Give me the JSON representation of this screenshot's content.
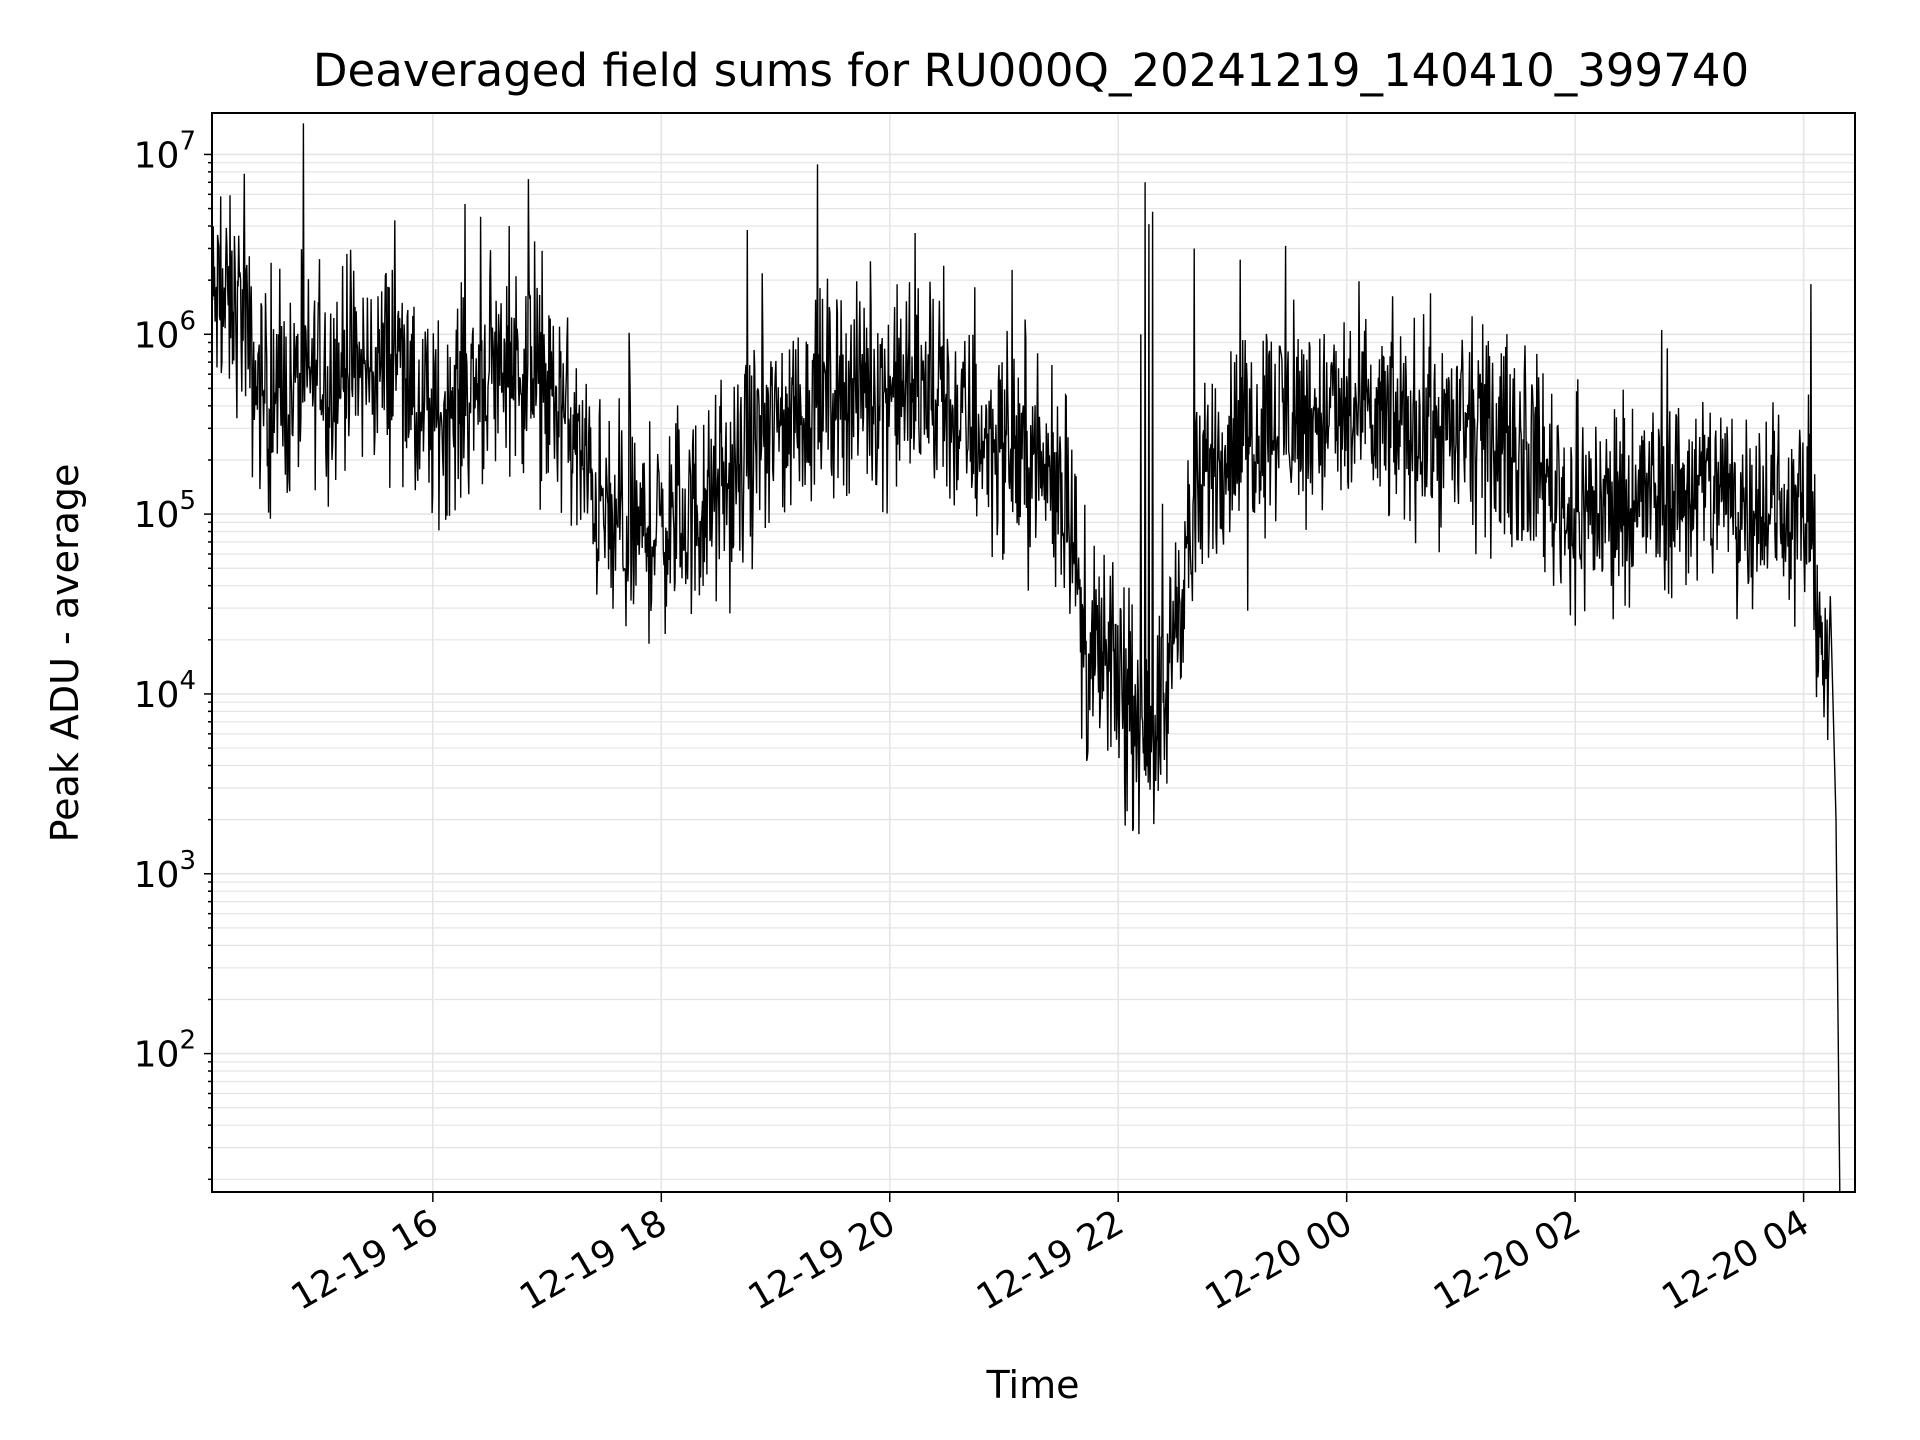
{
  "chart_data": {
    "type": "line",
    "title": "Deaveraged field sums for RU000Q_20241219_140410_399740",
    "xlabel": "Time",
    "ylabel": "Peak ADU - average",
    "yscale": "log",
    "ylim": [
      17,
      17000000
    ],
    "xlim": [
      "2024-12-19T14:04",
      "2024-12-20T04:27"
    ],
    "grid": true,
    "line_color": "#000000",
    "grid_color": "#e5e5e5",
    "x_ticks": [
      {
        "value": "2024-12-19T16:00",
        "label": "12-19 16"
      },
      {
        "value": "2024-12-19T18:00",
        "label": "12-19 18"
      },
      {
        "value": "2024-12-19T20:00",
        "label": "12-19 20"
      },
      {
        "value": "2024-12-19T22:00",
        "label": "12-19 22"
      },
      {
        "value": "2024-12-20T00:00",
        "label": "12-20 00"
      },
      {
        "value": "2024-12-20T02:00",
        "label": "12-20 02"
      },
      {
        "value": "2024-12-20T04:00",
        "label": "12-20 04"
      }
    ],
    "y_ticks": [
      {
        "value": 100,
        "base": "10",
        "exp": "2"
      },
      {
        "value": 1000,
        "base": "10",
        "exp": "3"
      },
      {
        "value": 10000,
        "base": "10",
        "exp": "4"
      },
      {
        "value": 100000,
        "base": "10",
        "exp": "5"
      },
      {
        "value": 1000000,
        "base": "10",
        "exp": "6"
      },
      {
        "value": 10000000,
        "base": "10",
        "exp": "7"
      }
    ],
    "series": [
      {
        "baseline": [
          [
            "2024-12-19T14:04",
            1500000
          ],
          [
            "2024-12-19T14:20",
            1400000
          ],
          [
            "2024-12-19T14:25",
            600000
          ],
          [
            "2024-12-19T14:35",
            400000
          ],
          [
            "2024-12-19T14:45",
            450000
          ],
          [
            "2024-12-19T15:00",
            650000
          ],
          [
            "2024-12-19T15:20",
            600000
          ],
          [
            "2024-12-19T15:35",
            700000
          ],
          [
            "2024-12-19T15:45",
            800000
          ],
          [
            "2024-12-19T15:50",
            320000
          ],
          [
            "2024-12-19T16:00",
            320000
          ],
          [
            "2024-12-19T16:20",
            500000
          ],
          [
            "2024-12-19T16:40",
            750000
          ],
          [
            "2024-12-19T17:00",
            450000
          ],
          [
            "2024-12-19T17:10",
            350000
          ],
          [
            "2024-12-19T17:20",
            170000
          ],
          [
            "2024-12-19T17:35",
            75000
          ],
          [
            "2024-12-19T17:55",
            80000
          ],
          [
            "2024-12-19T18:10",
            90000
          ],
          [
            "2024-12-19T18:20",
            100000
          ],
          [
            "2024-12-19T18:40",
            150000
          ],
          [
            "2024-12-19T18:50",
            250000
          ],
          [
            "2024-12-19T19:10",
            350000
          ],
          [
            "2024-12-19T19:30",
            500000
          ],
          [
            "2024-12-19T20:00",
            500000
          ],
          [
            "2024-12-19T20:20",
            450000
          ],
          [
            "2024-12-19T20:45",
            280000
          ],
          [
            "2024-12-19T21:15",
            200000
          ],
          [
            "2024-12-19T21:35",
            120000
          ],
          [
            "2024-12-19T21:42",
            15000
          ],
          [
            "2024-12-19T22:00",
            13000
          ],
          [
            "2024-12-19T22:05",
            7000
          ],
          [
            "2024-12-19T22:20",
            7000
          ],
          [
            "2024-12-19T22:25",
            9000
          ],
          [
            "2024-12-19T22:30",
            30000
          ],
          [
            "2024-12-19T22:40",
            90000
          ],
          [
            "2024-12-19T22:50",
            200000
          ],
          [
            "2024-12-19T23:00",
            250000
          ],
          [
            "2024-12-19T23:20",
            350000
          ],
          [
            "2024-12-19T23:45",
            350000
          ],
          [
            "2024-12-20T00:15",
            320000
          ],
          [
            "2024-12-20T00:45",
            300000
          ],
          [
            "2024-12-20T01:20",
            250000
          ],
          [
            "2024-12-20T01:40",
            200000
          ],
          [
            "2024-12-20T01:55",
            110000
          ],
          [
            "2024-12-20T02:15",
            110000
          ],
          [
            "2024-12-20T02:30",
            120000
          ],
          [
            "2024-12-20T02:50",
            130000
          ],
          [
            "2024-12-20T03:10",
            140000
          ],
          [
            "2024-12-20T03:35",
            120000
          ],
          [
            "2024-12-20T03:55",
            100000
          ],
          [
            "2024-12-20T04:03",
            90000
          ],
          [
            "2024-12-20T04:07",
            40000
          ],
          [
            "2024-12-20T04:10",
            20000
          ],
          [
            "2024-12-20T04:13",
            7000
          ]
        ],
        "spikes": [
          [
            "2024-12-19T14:21",
            7800000
          ],
          [
            "2024-12-19T14:35",
            2500000
          ],
          [
            "2024-12-19T15:15",
            2800000
          ],
          [
            "2024-12-19T15:40",
            4300000
          ],
          [
            "2024-12-19T16:17",
            5300000
          ],
          [
            "2024-12-19T16:25",
            4500000
          ],
          [
            "2024-12-19T16:40",
            4000000
          ],
          [
            "2024-12-19T18:45",
            3800000
          ],
          [
            "2024-12-19T19:22",
            8800000
          ],
          [
            "2024-12-19T21:50",
            45000
          ],
          [
            "2024-12-19T22:12",
            1000000
          ],
          [
            "2024-12-19T22:14",
            7000000
          ],
          [
            "2024-12-19T22:16",
            4100000
          ],
          [
            "2024-12-19T22:18",
            2700000
          ],
          [
            "2024-12-19T22:40",
            3000000
          ],
          [
            "2024-12-19T23:04",
            2600000
          ],
          [
            "2024-12-19T23:28",
            3100000
          ],
          [
            "2024-12-20T01:00",
            600000
          ],
          [
            "2024-12-20T04:04",
            1900000
          ]
        ],
        "dips": [
          [
            "2024-12-19T15:05",
            110000
          ],
          [
            "2024-12-19T16:00",
            130000
          ],
          [
            "2024-12-19T17:55",
            33000
          ],
          [
            "2024-12-19T22:18",
            4800000
          ],
          [
            "2024-12-19T22:22",
            4600
          ],
          [
            "2024-12-19T23:08",
            29000
          ],
          [
            "2024-12-20T02:00",
            24000
          ],
          [
            "2024-12-20T02:20",
            26000
          ],
          [
            "2024-12-20T03:25",
            26000
          ]
        ],
        "tail": [
          [
            "2024-12-20T04:14",
            35000
          ],
          [
            "2024-12-20T04:17",
            2000
          ],
          [
            "2024-12-20T04:18",
            180
          ],
          [
            "2024-12-20T04:19",
            17
          ]
        ]
      }
    ]
  }
}
